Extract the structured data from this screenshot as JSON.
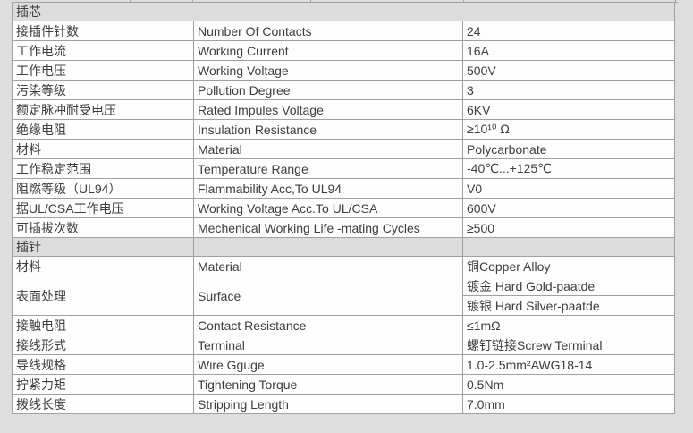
{
  "page": {
    "bg": "#dedede",
    "cell_bg": "#fdfdfd",
    "header_bg": "#dcdcdc",
    "border_color": "#a1a1a1",
    "text_color": "#3d3d3d"
  },
  "remnant_stub_positions": [
    145,
    215,
    347,
    518,
    755
  ],
  "table": {
    "sections": [
      {
        "header": "插芯",
        "rows": [
          {
            "cn": "接插件针数",
            "en": "Number Of Contacts",
            "value": "24"
          },
          {
            "cn": "工作电流",
            "en": "Working Current",
            "value": "16A"
          },
          {
            "cn": "工作电压",
            "en": "Working Voltage",
            "value": "500V"
          },
          {
            "cn": "污染等级",
            "en": "Pollution Degree",
            "value": "3"
          },
          {
            "cn": "额定脉冲耐受电压",
            "en": "Rated Impules Voltage",
            "value": "6KV"
          },
          {
            "cn": "绝缘电阻",
            "en": "Insulation Resistance",
            "value": "≥10¹⁰ Ω"
          },
          {
            "cn": "材料",
            "en": "Material",
            "value": "Polycarbonate"
          },
          {
            "cn": "工作稳定范围",
            "en": "Temperature Range",
            "value": "-40℃...+125℃"
          },
          {
            "cn": "阻燃等级（UL94）",
            "en": "Flammability Acc,To UL94",
            "value": "V0"
          },
          {
            "cn": "据UL/CSA工作电压",
            "en": "Working Voltage Acc.To UL/CSA",
            "value": "600V"
          },
          {
            "cn": "可插拔次数",
            "en": "Mechenical Working Life -mating Cycles",
            "value": "≥500"
          }
        ]
      },
      {
        "header": "插针",
        "rows": [
          {
            "cn": "材料",
            "en": "Material",
            "value": "铜Copper Alloy"
          },
          {
            "cn": "表面处理",
            "en": "Surface",
            "values": [
              "镀金 Hard Gold-paatde",
              "镀银 Hard Silver-paatde"
            ]
          },
          {
            "cn": "接触电阻",
            "en": "Contact Resistance",
            "value": "≤1mΩ"
          },
          {
            "cn": "接线形式",
            "en": "Terminal",
            "value": "螺钉链接Screw Terminal"
          },
          {
            "cn": "导线规格",
            "en": "Wire Gguge",
            "value": "1.0-2.5mm²AWG18-14"
          },
          {
            "cn": "拧紧力矩",
            "en": "Tightening Torque",
            "value": "0.5Nm"
          },
          {
            "cn": "拨线长度",
            "en": "Stripping Length",
            "value": "7.0mm"
          }
        ]
      }
    ]
  }
}
